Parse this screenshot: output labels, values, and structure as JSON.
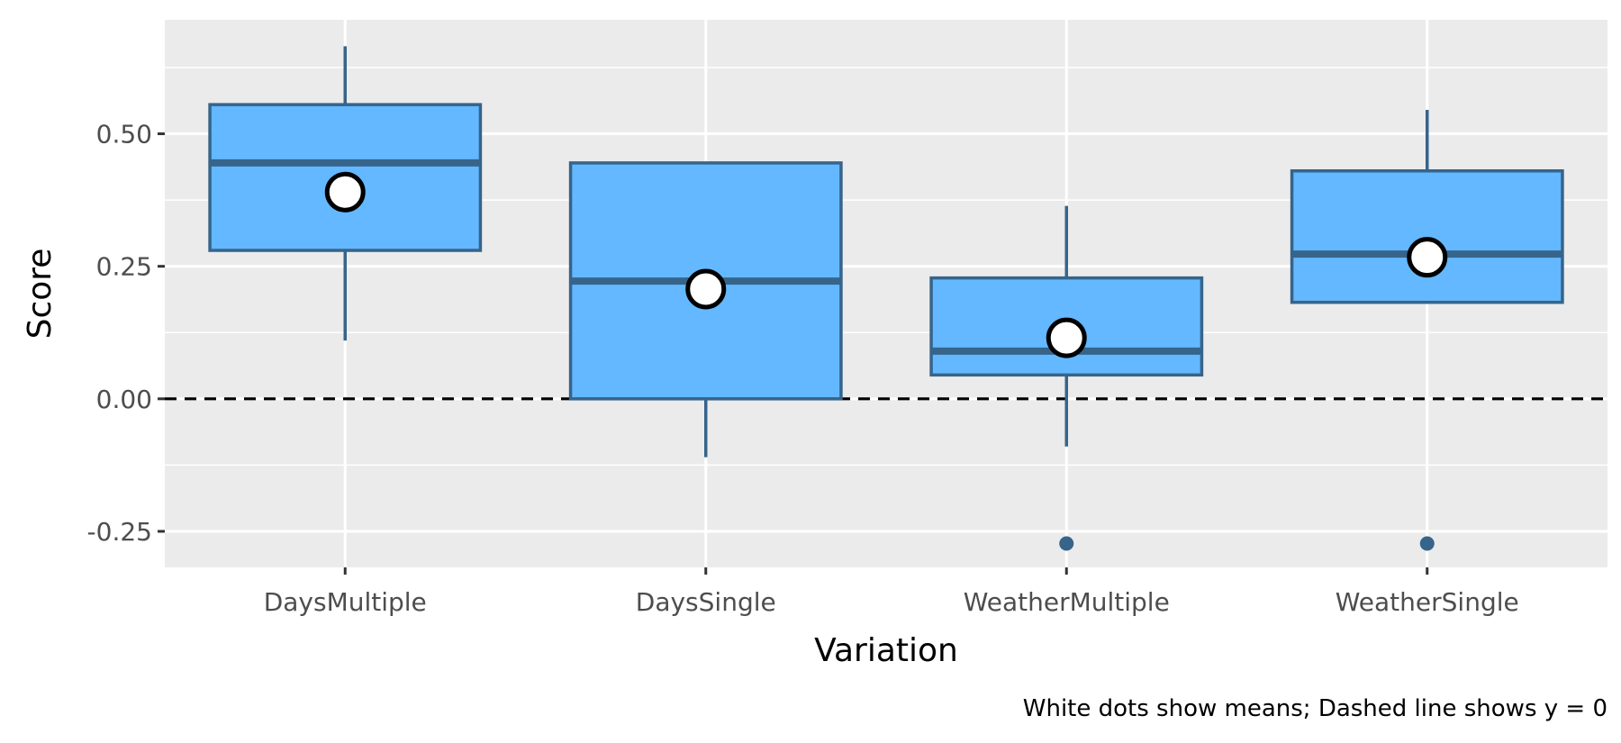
{
  "chart_data": {
    "type": "box",
    "title": "",
    "xlabel": "Variation",
    "ylabel": "Score",
    "caption": "White dots show means; Dashed line shows y = 0",
    "categories": [
      "DaysMultiple",
      "DaysSingle",
      "WeatherMultiple",
      "WeatherSingle"
    ],
    "boxes": [
      {
        "category": "DaysMultiple",
        "whisker_low": 0.11,
        "q1": 0.28,
        "median": 0.445,
        "q3": 0.555,
        "whisker_high": 0.665,
        "mean": 0.39,
        "outliers": []
      },
      {
        "category": "DaysSingle",
        "whisker_low": -0.11,
        "q1": 0.0,
        "median": 0.222,
        "q3": 0.445,
        "whisker_high": 0.445,
        "mean": 0.207,
        "outliers": []
      },
      {
        "category": "WeatherMultiple",
        "whisker_low": -0.09,
        "q1": 0.045,
        "median": 0.09,
        "q3": 0.228,
        "whisker_high": 0.364,
        "mean": 0.115,
        "outliers": [
          -0.273
        ]
      },
      {
        "category": "WeatherSingle",
        "whisker_low": 0.182,
        "q1": 0.182,
        "median": 0.273,
        "q3": 0.43,
        "whisker_high": 0.545,
        "mean": 0.267,
        "outliers": [
          -0.273
        ]
      }
    ],
    "y_ticks": [
      -0.25,
      0.0,
      0.25,
      0.5
    ],
    "y_tick_labels": [
      "-0.25",
      "0.00",
      "0.25",
      "0.50"
    ],
    "ylim": [
      -0.318,
      0.715
    ],
    "reference_line": {
      "y": 0,
      "style": "dashed"
    },
    "grid": true,
    "colors": {
      "panel_background": "#ebebeb",
      "grid": "#ffffff",
      "box_fill": "#63b8ff",
      "box_stroke": "#36648b",
      "mean_fill": "#ffffff",
      "mean_stroke": "#000000",
      "reference_line": "#000000"
    }
  }
}
